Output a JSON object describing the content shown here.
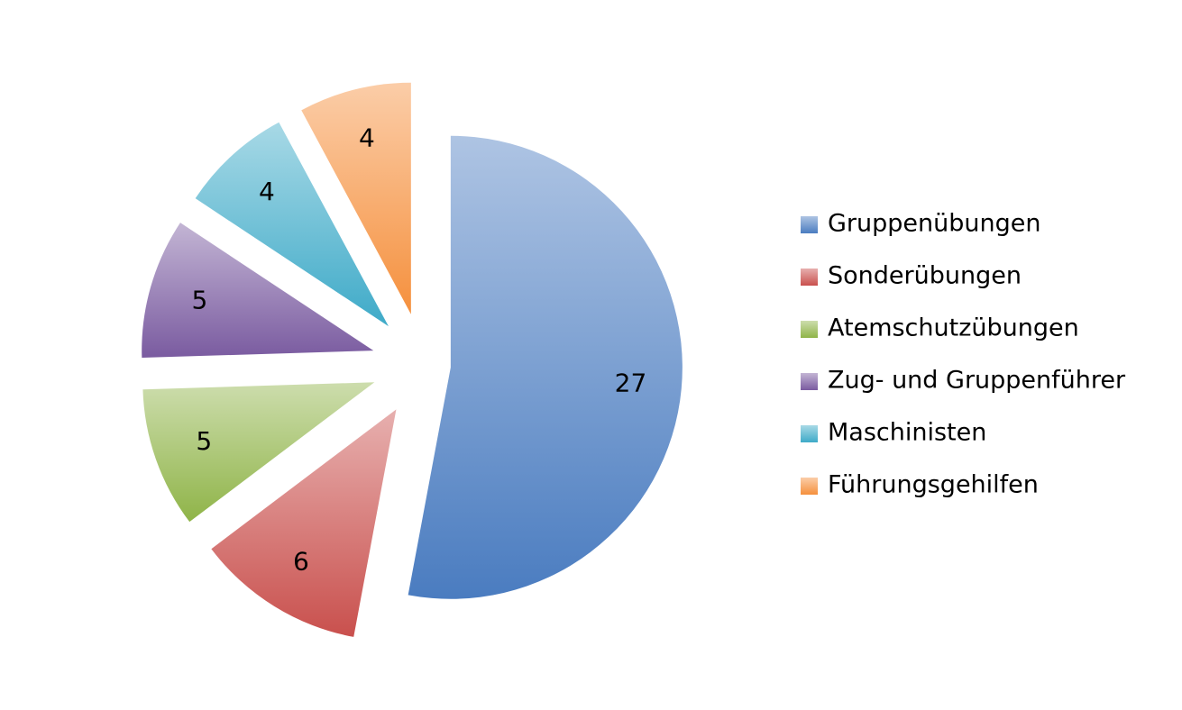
{
  "chart_data": {
    "type": "pie",
    "categories": [
      "Gruppenübungen",
      "Sonderübungen",
      "Atemschutzübungen",
      "Zug- und Gruppenführer",
      "Maschinisten",
      "Führungsgehilfen"
    ],
    "values": [
      27,
      6,
      5,
      5,
      4,
      4
    ],
    "colors": [
      "#4a7cc0",
      "#c9504d",
      "#8fb448",
      "#7a5ba0",
      "#3eaac8",
      "#f5903d"
    ],
    "legend": "right"
  }
}
